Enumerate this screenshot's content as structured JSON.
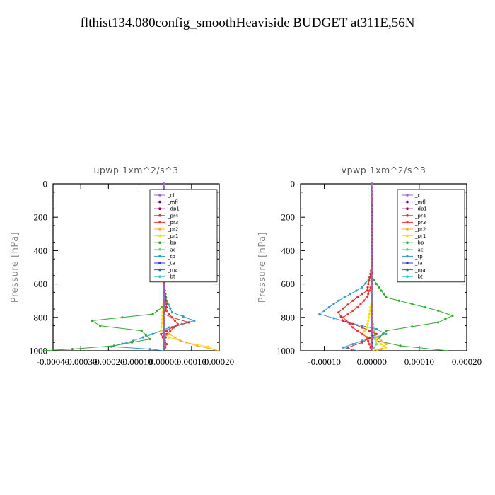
{
  "title": "flthist134.080config_smoothHeaviside  BUDGET at311E,56N",
  "chart_data": [
    {
      "type": "line",
      "title": "upwp   1xm^2/s^3",
      "ylabel": "Pressure [hPa]",
      "xlim": [
        -0.0004,
        0.0002
      ],
      "ylim": [
        1000,
        0
      ],
      "xticks": [
        "-0.00040",
        "-0.00030",
        "-0.00020",
        "-0.00010",
        "0.00000",
        "0.00010",
        "0.00020"
      ],
      "yticks": [
        "0",
        "200",
        "400",
        "600",
        "800",
        "1000"
      ],
      "legend_position": "top-right",
      "series": [
        {
          "name": "_cl",
          "color": "#9966cc",
          "x": [
            0,
            0,
            0,
            0,
            0,
            0,
            0,
            0,
            0,
            0,
            0
          ],
          "y": [
            0,
            100,
            200,
            300,
            400,
            500,
            600,
            700,
            800,
            900,
            1000
          ]
        },
        {
          "name": "_mfl",
          "color": "#660066",
          "x": [
            0,
            0,
            0,
            0,
            0,
            0,
            0,
            0,
            0,
            0,
            0
          ],
          "y": [
            0,
            100,
            200,
            300,
            400,
            500,
            600,
            700,
            800,
            900,
            1000
          ]
        },
        {
          "name": "_dp1",
          "color": "#990066",
          "x": [
            0,
            0,
            0,
            0,
            0,
            0,
            0,
            0,
            0,
            0,
            0
          ],
          "y": [
            0,
            100,
            200,
            300,
            400,
            500,
            600,
            700,
            800,
            900,
            1000
          ]
        },
        {
          "name": "_pr4",
          "color": "#cc3333",
          "x": [
            0,
            0,
            0,
            1e-05,
            0,
            3e-05,
            9e-05,
            3e-05,
            -1e-05,
            1e-05,
            0
          ],
          "y": [
            0,
            200,
            600,
            740,
            780,
            800,
            830,
            860,
            900,
            960,
            1000
          ]
        },
        {
          "name": "_pr3",
          "color": "#ff3333",
          "x": [
            0,
            0,
            0,
            1e-05,
            5e-05,
            1e-05,
            0,
            0
          ],
          "y": [
            0,
            400,
            700,
            760,
            840,
            900,
            960,
            1000
          ]
        },
        {
          "name": "_pr2",
          "color": "#ffaa33",
          "x": [
            0,
            0,
            0,
            0,
            2e-05,
            6e-05,
            0.00012,
            0.0002
          ],
          "y": [
            0,
            400,
            700,
            850,
            900,
            940,
            970,
            1000
          ]
        },
        {
          "name": "_pr1",
          "color": "#ffdd00",
          "x": [
            0,
            0,
            0,
            -1e-05,
            2e-05,
            8e-05,
            0.00016,
            0.00019
          ],
          "y": [
            0,
            400,
            700,
            880,
            920,
            950,
            975,
            1000
          ]
        },
        {
          "name": "_bp",
          "color": "#33aa33",
          "x": [
            0,
            0,
            1e-05,
            -4e-05,
            -0.00026,
            -0.00023,
            -8e-05,
            -5e-05,
            -0.00018,
            -0.00033,
            -0.00044
          ],
          "y": [
            0,
            600,
            720,
            780,
            820,
            850,
            880,
            930,
            970,
            990,
            1000
          ]
        },
        {
          "name": "_ac",
          "color": "#66dd66",
          "x": [
            0,
            0,
            0,
            0,
            0
          ],
          "y": [
            0,
            500,
            800,
            950,
            1000
          ]
        },
        {
          "name": "_tp",
          "color": "#3399cc",
          "x": [
            0,
            0,
            1e-05,
            3e-05,
            0.00011,
            2e-05,
            -4e-05,
            -0.00011,
            -0.00019,
            -5e-05,
            0
          ],
          "y": [
            0,
            600,
            700,
            770,
            820,
            860,
            900,
            940,
            975,
            990,
            1000
          ]
        },
        {
          "name": "_ta",
          "color": "#3333cc",
          "x": [
            0,
            0,
            0,
            0,
            0
          ],
          "y": [
            0,
            500,
            800,
            950,
            1000
          ]
        },
        {
          "name": "_ma",
          "color": "#336699",
          "x": [
            0,
            0,
            0,
            0,
            0
          ],
          "y": [
            0,
            500,
            800,
            950,
            1000
          ]
        },
        {
          "name": "_bt",
          "color": "#33cccc",
          "x": [
            0,
            0,
            0,
            0,
            0
          ],
          "y": [
            0,
            500,
            800,
            950,
            1000
          ]
        }
      ]
    },
    {
      "type": "line",
      "title": "vpwp   1xm^2/s^3",
      "ylabel": "Pressure [hPa]",
      "xlim": [
        -0.00015,
        0.0002
      ],
      "ylim": [
        1000,
        0
      ],
      "xticks": [
        "-0.00010",
        "0.00000",
        "0.00010",
        "0.00020"
      ],
      "yticks": [
        "0",
        "200",
        "400",
        "600",
        "800",
        "1000"
      ],
      "legend_position": "top-right",
      "series": [
        {
          "name": "_cl",
          "color": "#9966cc",
          "x": [
            0,
            0,
            0,
            0,
            0,
            0,
            0,
            0,
            0,
            0,
            0
          ],
          "y": [
            0,
            100,
            200,
            300,
            400,
            500,
            600,
            700,
            800,
            900,
            1000
          ]
        },
        {
          "name": "_mfl",
          "color": "#660066",
          "x": [
            0,
            0,
            0,
            0,
            0,
            0,
            0,
            0,
            0,
            0,
            0
          ],
          "y": [
            0,
            100,
            200,
            300,
            400,
            500,
            600,
            700,
            800,
            900,
            1000
          ]
        },
        {
          "name": "_dp1",
          "color": "#990066",
          "x": [
            0,
            0,
            0,
            0,
            0,
            0,
            0,
            0,
            0,
            0,
            0
          ],
          "y": [
            0,
            100,
            200,
            300,
            400,
            500,
            600,
            700,
            800,
            900,
            1000
          ]
        },
        {
          "name": "_pr4",
          "color": "#cc3333",
          "x": [
            0,
            0,
            -1e-05,
            -4e-05,
            -7e-05,
            -6e-05,
            -2e-05,
            1e-05,
            -2e-05,
            -5e-05,
            -4e-05
          ],
          "y": [
            0,
            500,
            640,
            700,
            770,
            820,
            860,
            900,
            950,
            980,
            1000
          ]
        },
        {
          "name": "_pr3",
          "color": "#ff3333",
          "x": [
            0,
            0,
            -1e-05,
            -3e-05,
            -6e-05,
            -4e-05,
            -1e-05,
            0
          ],
          "y": [
            0,
            600,
            680,
            740,
            800,
            860,
            920,
            1000
          ]
        },
        {
          "name": "_pr2",
          "color": "#ffaa33",
          "x": [
            0,
            0,
            0,
            1e-05,
            3e-05,
            2e-05,
            0
          ],
          "y": [
            0,
            700,
            850,
            920,
            960,
            990,
            1000
          ]
        },
        {
          "name": "_pr1",
          "color": "#ffdd00",
          "x": [
            0,
            0,
            -1e-05,
            -2e-05,
            1e-05,
            3e-05,
            1e-05
          ],
          "y": [
            0,
            700,
            860,
            900,
            940,
            980,
            1000
          ]
        },
        {
          "name": "_bp",
          "color": "#33aa33",
          "x": [
            0,
            0,
            1e-05,
            3e-05,
            0.00014,
            0.00017,
            0.00014,
            3e-05,
            1e-05,
            6e-05,
            0.00016
          ],
          "y": [
            0,
            550,
            600,
            680,
            760,
            790,
            830,
            880,
            940,
            970,
            1000
          ]
        },
        {
          "name": "_ac",
          "color": "#66dd66",
          "x": [
            0,
            0,
            0,
            1e-05,
            0
          ],
          "y": [
            0,
            500,
            800,
            960,
            1000
          ]
        },
        {
          "name": "_tp",
          "color": "#3399cc",
          "x": [
            0,
            0,
            -2e-05,
            -7e-05,
            -0.00011,
            -5e-05,
            1e-05,
            3e-05,
            -2e-05,
            -6e-05,
            -3e-05
          ],
          "y": [
            0,
            550,
            620,
            700,
            780,
            830,
            870,
            900,
            940,
            980,
            1000
          ]
        },
        {
          "name": "_ta",
          "color": "#3333cc",
          "x": [
            0,
            0,
            0,
            0,
            0
          ],
          "y": [
            0,
            500,
            800,
            950,
            1000
          ]
        },
        {
          "name": "_ma",
          "color": "#336699",
          "x": [
            0,
            0,
            0,
            0,
            0
          ],
          "y": [
            0,
            500,
            800,
            950,
            1000
          ]
        },
        {
          "name": "_bt",
          "color": "#33cccc",
          "x": [
            0,
            0,
            0,
            0,
            0
          ],
          "y": [
            0,
            500,
            800,
            950,
            1000
          ]
        }
      ]
    }
  ]
}
